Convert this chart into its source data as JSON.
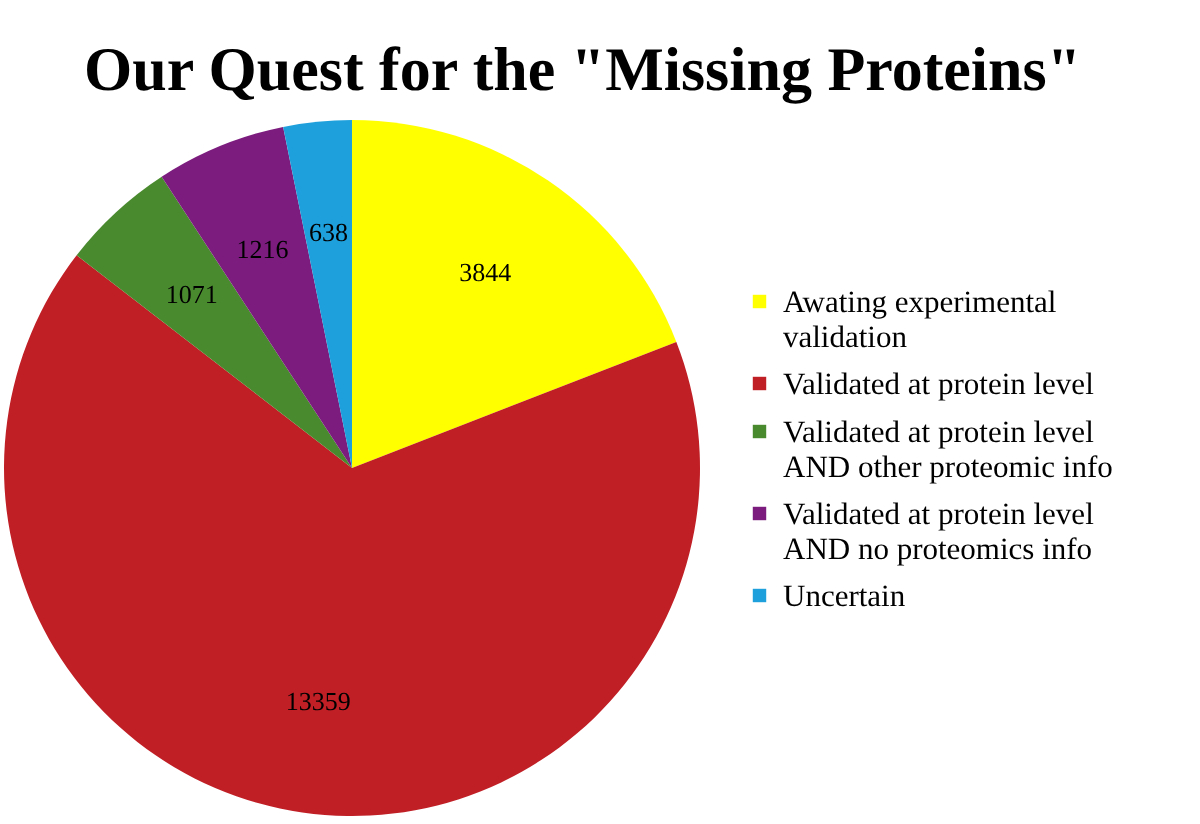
{
  "chart_data": {
    "type": "pie",
    "title": "Our Quest for the \"Missing Proteins\"",
    "categories": [
      "Awating experimental validation",
      "Validated at protein level",
      "Validated at protein level AND other proteomic info",
      "Validated at protein level AND  no proteomics info",
      "Uncertain"
    ],
    "values": [
      3844,
      13359,
      1071,
      1216,
      638
    ],
    "colors": [
      "#ffff00",
      "#c01f26",
      "#4a8a2e",
      "#7b1c7e",
      "#1ea0dc"
    ],
    "data_labels": true,
    "legend": "right"
  }
}
